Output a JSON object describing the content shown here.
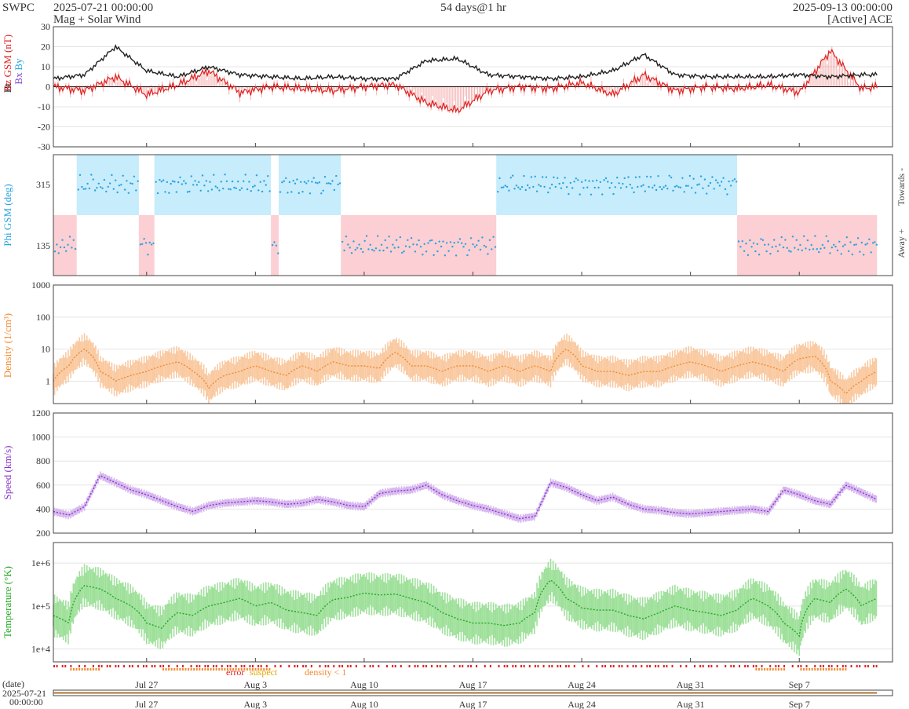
{
  "header": {
    "org": "SWPC",
    "start": "2025-07-21 00:00:00",
    "subtitle": "Mag + Solar Wind",
    "span": "54 days@1 hr",
    "end": "2025-09-13 00:00:00",
    "source": "[Active] ACE"
  },
  "colors": {
    "bt": "#222222",
    "bz": "#e02020",
    "bx": "#7a3fc8",
    "by": "#20a8e0",
    "toward": "#c7ecfb",
    "away": "#fbcfd3",
    "phi": "#2aa3e0",
    "density": "#f28a30",
    "density_fill": "#f9c9a0",
    "speed": "#8a35c9",
    "speed_fill": "#d6b6ee",
    "temp": "#22a822",
    "temp_fill": "#9ee09a",
    "error": "#e02020",
    "suspect": "#f0b400",
    "density_lt1": "#f28a30"
  },
  "legend": {
    "error": "error",
    "suspect": "suspect",
    "density_lt1": "density < 1"
  },
  "footer": {
    "date_label": "(date)",
    "date_value": "2025-07-21",
    "time_value": "00:00:00"
  },
  "chart_data": [
    {
      "type": "line",
      "panel": "magnetic field",
      "ylabel_parts": [
        "Bt",
        "Bz GSM (nT)",
        "Bx",
        "By"
      ],
      "ylim": [
        -30,
        30
      ],
      "yticks": [
        "30",
        "20",
        "10",
        "0",
        "-10",
        "-20",
        "-30"
      ],
      "x_start": "2025-07-21",
      "x_end": "2025-09-13",
      "series": [
        {
          "name": "Bt",
          "x": [
            0,
            2,
            4,
            6,
            8,
            10,
            12,
            14,
            16,
            18,
            20,
            22,
            24,
            26,
            28,
            30,
            32,
            34,
            36,
            38,
            40,
            42,
            44,
            46,
            48,
            50,
            52,
            53
          ],
          "values": [
            4,
            6,
            20,
            8,
            5,
            10,
            6,
            5,
            4,
            5,
            4,
            4,
            13,
            14,
            6,
            5,
            4,
            5,
            8,
            16,
            6,
            5,
            5,
            5,
            6,
            5,
            6,
            6
          ]
        },
        {
          "name": "Bz GSM",
          "x": [
            0,
            2,
            4,
            6,
            8,
            10,
            12,
            14,
            16,
            18,
            20,
            22,
            24,
            26,
            28,
            30,
            32,
            34,
            36,
            38,
            40,
            42,
            44,
            46,
            48,
            50,
            52,
            53
          ],
          "values": [
            0,
            -2,
            5,
            -4,
            1,
            8,
            -3,
            0,
            -1,
            -2,
            0,
            1,
            -8,
            -12,
            -2,
            0,
            -1,
            2,
            -4,
            6,
            -2,
            0,
            -1,
            1,
            -3,
            18,
            -1,
            0
          ]
        }
      ]
    },
    {
      "type": "scatter",
      "panel": "phi angle",
      "ylabel": "Phi GSM (deg)",
      "right_labels": [
        "Towards -",
        "Away +"
      ],
      "yticks": [
        "315",
        "135"
      ],
      "sectors": [
        {
          "from": 0,
          "to": 1.5,
          "side": "away"
        },
        {
          "from": 1.5,
          "to": 5.5,
          "side": "toward"
        },
        {
          "from": 5.5,
          "to": 6.5,
          "side": "away"
        },
        {
          "from": 6.5,
          "to": 14,
          "side": "toward"
        },
        {
          "from": 14,
          "to": 14.5,
          "side": "away"
        },
        {
          "from": 14.5,
          "to": 18.5,
          "side": "toward"
        },
        {
          "from": 18.5,
          "to": 28.5,
          "side": "away"
        },
        {
          "from": 28.5,
          "to": 44,
          "side": "toward"
        },
        {
          "from": 44,
          "to": 53,
          "side": "away"
        }
      ]
    },
    {
      "type": "line",
      "panel": "density",
      "ylabel": "Density (1/cm³)",
      "yscale": "log",
      "ylim": [
        0.2,
        1000
      ],
      "yticks": [
        "1000",
        "100",
        "10",
        "1"
      ],
      "x": [
        0,
        1,
        2,
        3,
        4,
        5,
        6,
        7,
        8,
        9,
        10,
        11,
        12,
        13,
        14,
        15,
        16,
        17,
        18,
        19,
        20,
        21,
        22,
        23,
        24,
        25,
        26,
        27,
        28,
        29,
        30,
        31,
        32,
        33,
        34,
        35,
        36,
        37,
        38,
        39,
        40,
        41,
        42,
        43,
        44,
        45,
        46,
        47,
        48,
        49,
        50,
        51,
        52,
        53
      ],
      "values": [
        1,
        3,
        10,
        2,
        1,
        1.5,
        2,
        3,
        4,
        2,
        0.6,
        1.5,
        2,
        3,
        2,
        1.5,
        3,
        2,
        4,
        3,
        3,
        2.5,
        8,
        3,
        3,
        2,
        3,
        3,
        2,
        3,
        2,
        3,
        2,
        10,
        3,
        2,
        2,
        1.5,
        2,
        2,
        3,
        4,
        3,
        2,
        3,
        4,
        3,
        2,
        5,
        6,
        1,
        0.4,
        1,
        2
      ]
    },
    {
      "type": "line",
      "panel": "speed",
      "ylabel": "Speed (km/s)",
      "ylim": [
        200,
        1200
      ],
      "yticks": [
        "1200",
        "1000",
        "800",
        "600",
        "400",
        "200"
      ],
      "x": [
        0,
        1,
        2,
        3,
        4,
        5,
        6,
        7,
        8,
        9,
        10,
        11,
        12,
        13,
        14,
        15,
        16,
        17,
        18,
        19,
        20,
        21,
        22,
        23,
        24,
        25,
        26,
        27,
        28,
        29,
        30,
        31,
        32,
        33,
        34,
        35,
        36,
        37,
        38,
        39,
        40,
        41,
        42,
        43,
        44,
        45,
        46,
        47,
        48,
        49,
        50,
        51,
        52,
        53
      ],
      "values": [
        380,
        350,
        420,
        680,
        620,
        560,
        520,
        470,
        420,
        380,
        430,
        450,
        460,
        470,
        460,
        440,
        450,
        480,
        460,
        430,
        420,
        530,
        550,
        560,
        600,
        520,
        470,
        430,
        400,
        360,
        320,
        340,
        620,
        580,
        520,
        470,
        500,
        440,
        400,
        390,
        370,
        360,
        370,
        380,
        390,
        400,
        380,
        560,
        520,
        470,
        440,
        600,
        540,
        480
      ]
    },
    {
      "type": "line",
      "panel": "temperature",
      "ylabel": "Temperature (°K)",
      "yscale": "log",
      "ylim": [
        5000,
        3000000
      ],
      "yticks": [
        "1e+6",
        "1e+5",
        "1e+4"
      ],
      "x": [
        0,
        1,
        2,
        3,
        4,
        5,
        6,
        7,
        8,
        9,
        10,
        11,
        12,
        13,
        14,
        15,
        16,
        17,
        18,
        19,
        20,
        21,
        22,
        23,
        24,
        25,
        26,
        27,
        28,
        29,
        30,
        31,
        32,
        33,
        34,
        35,
        36,
        37,
        38,
        39,
        40,
        41,
        42,
        43,
        44,
        45,
        46,
        47,
        48,
        49,
        50,
        51,
        52,
        53
      ],
      "values": [
        60000,
        40000,
        300000,
        250000,
        150000,
        100000,
        40000,
        30000,
        70000,
        60000,
        100000,
        120000,
        150000,
        100000,
        120000,
        80000,
        70000,
        60000,
        140000,
        160000,
        200000,
        180000,
        190000,
        150000,
        120000,
        70000,
        50000,
        40000,
        40000,
        35000,
        40000,
        70000,
        400000,
        150000,
        90000,
        80000,
        80000,
        60000,
        50000,
        70000,
        100000,
        80000,
        70000,
        60000,
        80000,
        150000,
        100000,
        40000,
        20000,
        150000,
        120000,
        250000,
        100000,
        150000
      ]
    },
    {
      "type": "table",
      "panel": "x axis",
      "tick_labels": [
        "Jul 27",
        "Aug 3",
        "Aug 10",
        "Aug 17",
        "Aug 24",
        "Aug 31",
        "Sep 7"
      ],
      "tick_days": [
        6,
        13,
        20,
        27,
        34,
        41,
        48
      ]
    }
  ]
}
